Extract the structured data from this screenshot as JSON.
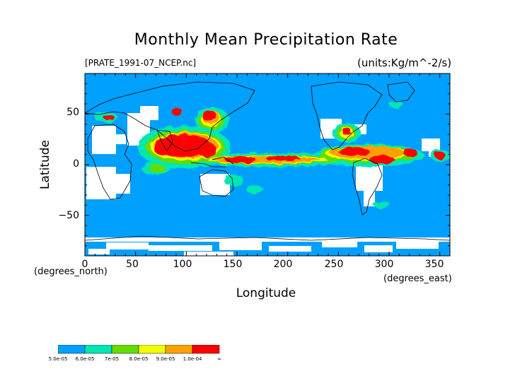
{
  "title": "Monthly Mean Precipitation Rate",
  "file_label": "[PRATE_1991-07_NCEP.nc]",
  "units_label": "(units:Kg/m^-2/s)",
  "y_axis": {
    "label": "Latitude",
    "units": "(degrees_north)",
    "ticks": [
      "50",
      "0",
      "−50"
    ]
  },
  "x_axis": {
    "label": "Longitude",
    "units": "(degrees_east)",
    "ticks": [
      "0",
      "50",
      "100",
      "150",
      "200",
      "250",
      "300",
      "350"
    ]
  },
  "colors": {
    "ocean_base": "#00a0ff",
    "missing": "#ffffff",
    "coast": "#000000"
  },
  "legend": {
    "bins": [
      {
        "label": "5.0e-05",
        "color": "#00a0ff"
      },
      {
        "label": "6.0e-05",
        "color": "#00e6b4"
      },
      {
        "label": "7e-05",
        "color": "#64dc00"
      },
      {
        "label": "8.0e-05",
        "color": "#f0ff00"
      },
      {
        "label": "9.0e-05",
        "color": "#ffa000"
      },
      {
        "label": "1.0e-04",
        "color": "#ff0000"
      }
    ],
    "end_label": "∞"
  }
}
